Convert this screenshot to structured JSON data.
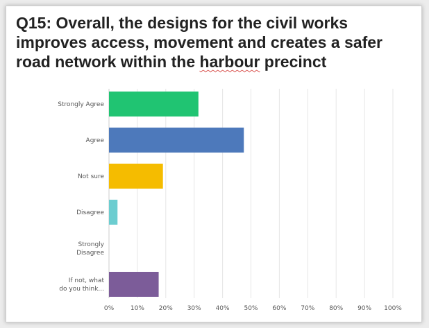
{
  "title_parts": {
    "before": "Q15: Overall, the designs for the civil works improves access, movement and creates a safer road network within the ",
    "misspelled": "harbour",
    "after": " precinct"
  },
  "chart_data": {
    "type": "bar",
    "orientation": "horizontal",
    "title": "Q15: Overall, the designs for the civil works improves access, movement and creates a safer road network within the harbour precinct",
    "categories": [
      [
        "Strongly Agree"
      ],
      [
        "Agree"
      ],
      [
        "Not sure"
      ],
      [
        "Disagree"
      ],
      [
        "Strongly",
        "Disagree"
      ],
      [
        "If not, what",
        "do you think..."
      ]
    ],
    "values": [
      31.5,
      47.5,
      19,
      3,
      0,
      17.5
    ],
    "colors": [
      "#20c472",
      "#4d79bb",
      "#f5bc00",
      "#6ccdd0",
      "#e9893e",
      "#7c5c99"
    ],
    "xlim": [
      0,
      100
    ],
    "ticks": [
      "0%",
      "10%",
      "20%",
      "30%",
      "40%",
      "50%",
      "60%",
      "70%",
      "80%",
      "90%",
      "100%"
    ],
    "grid": true
  }
}
